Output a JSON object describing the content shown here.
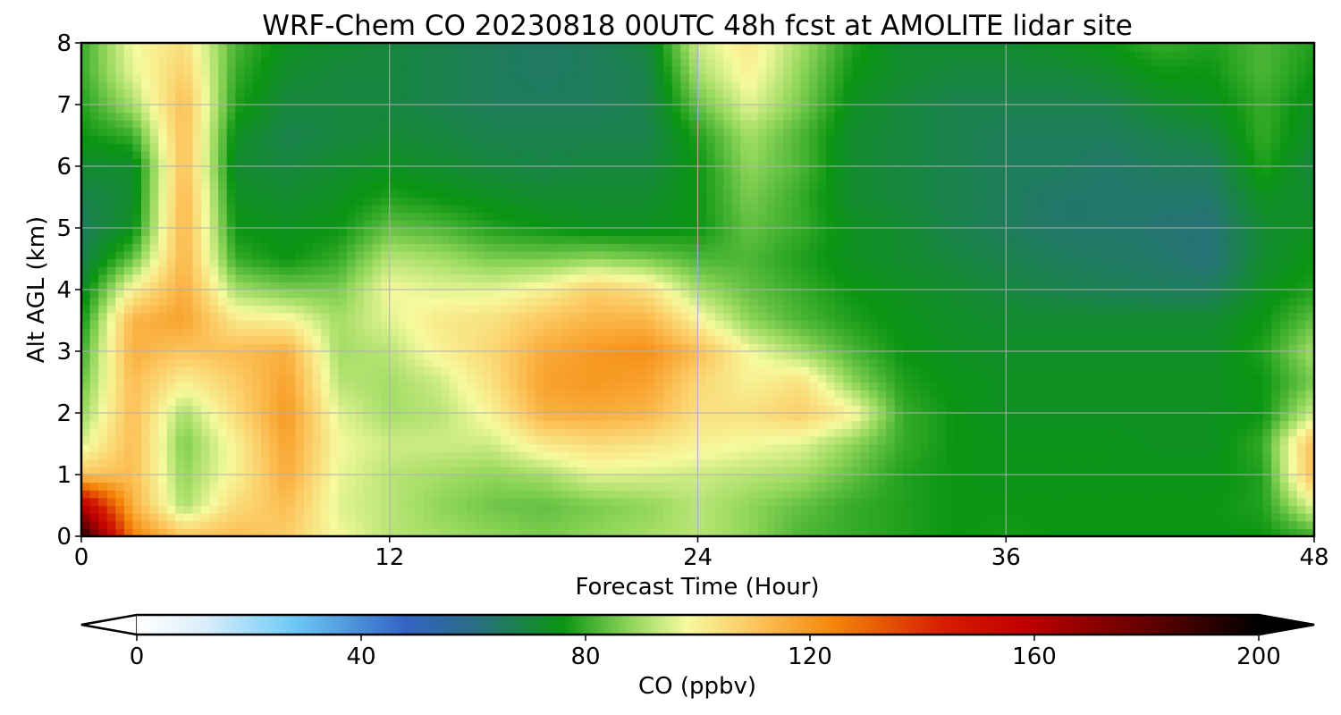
{
  "chart_data": {
    "type": "heatmap",
    "title": "WRF-Chem CO  20230818 00UTC 48h fcst at AMOLITE lidar site",
    "xlabel": "Forecast Time (Hour)",
    "ylabel": "Alt AGL (km)",
    "xlim": [
      0,
      48
    ],
    "ylim": [
      0,
      8
    ],
    "xticks": [
      "0",
      "12",
      "24",
      "36",
      "48"
    ],
    "yticks": [
      "0",
      "1",
      "2",
      "3",
      "4",
      "5",
      "6",
      "7",
      "8"
    ],
    "grid": true,
    "x": [
      0,
      2,
      4,
      6,
      8,
      10,
      12,
      14,
      16,
      18,
      20,
      22,
      24,
      26,
      28,
      30,
      32,
      34,
      36,
      38,
      40,
      42,
      44,
      46,
      48
    ],
    "y": [
      0,
      0.5,
      1,
      1.5,
      2,
      2.5,
      3,
      3.5,
      4,
      4.5,
      5,
      5.5,
      6,
      6.5,
      7,
      7.5,
      8
    ],
    "z": [
      [
        195,
        125,
        110,
        112,
        108,
        98,
        92,
        90,
        88,
        86,
        88,
        90,
        92,
        88,
        82,
        80,
        78,
        76,
        77,
        76,
        76,
        76,
        76,
        76,
        80
      ],
      [
        160,
        115,
        90,
        105,
        112,
        96,
        92,
        88,
        85,
        84,
        86,
        88,
        92,
        88,
        84,
        80,
        78,
        76,
        76,
        76,
        76,
        76,
        76,
        78,
        96
      ],
      [
        110,
        112,
        88,
        100,
        116,
        97,
        92,
        90,
        88,
        90,
        96,
        95,
        94,
        92,
        90,
        84,
        78,
        76,
        75,
        75,
        75,
        75,
        75,
        78,
        112
      ],
      [
        95,
        112,
        86,
        100,
        118,
        98,
        94,
        94,
        94,
        102,
        105,
        103,
        100,
        98,
        96,
        88,
        80,
        76,
        75,
        75,
        75,
        74,
        74,
        80,
        112
      ],
      [
        88,
        112,
        90,
        105,
        120,
        96,
        90,
        92,
        100,
        115,
        116,
        114,
        104,
        104,
        108,
        100,
        80,
        76,
        74,
        74,
        74,
        74,
        74,
        76,
        94
      ],
      [
        84,
        112,
        100,
        108,
        118,
        92,
        90,
        94,
        104,
        118,
        120,
        118,
        106,
        100,
        104,
        88,
        78,
        75,
        74,
        74,
        74,
        74,
        74,
        76,
        86
      ],
      [
        80,
        115,
        110,
        112,
        115,
        90,
        92,
        100,
        106,
        116,
        120,
        122,
        112,
        98,
        90,
        82,
        76,
        74,
        73,
        73,
        73,
        73,
        73,
        78,
        90
      ],
      [
        76,
        114,
        118,
        102,
        100,
        90,
        96,
        102,
        104,
        110,
        114,
        114,
        100,
        88,
        82,
        78,
        75,
        73,
        72,
        72,
        72,
        72,
        72,
        76,
        84
      ],
      [
        72,
        100,
        116,
        90,
        86,
        86,
        98,
        96,
        96,
        100,
        108,
        104,
        90,
        84,
        80,
        76,
        74,
        72,
        70,
        68,
        67,
        66,
        66,
        74,
        78
      ],
      [
        68,
        84,
        114,
        80,
        76,
        80,
        92,
        90,
        86,
        86,
        88,
        86,
        82,
        82,
        78,
        74,
        72,
        70,
        68,
        66,
        65,
        64,
        62,
        72,
        76
      ],
      [
        66,
        74,
        114,
        76,
        74,
        76,
        84,
        82,
        78,
        76,
        74,
        74,
        76,
        84,
        80,
        74,
        72,
        68,
        66,
        64,
        64,
        63,
        62,
        72,
        74
      ],
      [
        68,
        72,
        114,
        74,
        72,
        74,
        78,
        76,
        74,
        72,
        72,
        72,
        76,
        86,
        80,
        72,
        70,
        68,
        66,
        64,
        64,
        64,
        64,
        74,
        72
      ],
      [
        72,
        72,
        112,
        72,
        70,
        72,
        74,
        72,
        70,
        69,
        70,
        70,
        76,
        88,
        82,
        72,
        70,
        68,
        66,
        66,
        64,
        66,
        66,
        78,
        70
      ],
      [
        76,
        80,
        112,
        74,
        68,
        70,
        71,
        70,
        68,
        68,
        68,
        68,
        78,
        90,
        82,
        72,
        70,
        68,
        66,
        66,
        66,
        68,
        70,
        80,
        72
      ],
      [
        78,
        90,
        112,
        78,
        70,
        70,
        70,
        68,
        66,
        66,
        66,
        68,
        84,
        96,
        86,
        74,
        70,
        68,
        68,
        68,
        68,
        72,
        74,
        80,
        74
      ],
      [
        80,
        96,
        108,
        80,
        72,
        70,
        70,
        68,
        66,
        65,
        66,
        68,
        90,
        100,
        88,
        76,
        72,
        70,
        70,
        70,
        72,
        76,
        76,
        82,
        76
      ],
      [
        80,
        98,
        104,
        82,
        74,
        72,
        70,
        68,
        66,
        65,
        66,
        70,
        94,
        102,
        90,
        78,
        72,
        72,
        72,
        74,
        76,
        80,
        78,
        82,
        78
      ]
    ],
    "colorbar": {
      "label": "CO  (ppbv)",
      "min": 0,
      "max": 200,
      "ticks": [
        "0",
        "40",
        "80",
        "120",
        "160",
        "200"
      ],
      "extend": "both",
      "stops": [
        [
          0,
          "#ffffff"
        ],
        [
          12,
          "#dbeefb"
        ],
        [
          28,
          "#6ccaf6"
        ],
        [
          48,
          "#3263c4"
        ],
        [
          60,
          "#2a6d86"
        ],
        [
          76,
          "#0a9512"
        ],
        [
          88,
          "#90d65a"
        ],
        [
          98,
          "#f6fa9e"
        ],
        [
          110,
          "#fcc65e"
        ],
        [
          124,
          "#f58709"
        ],
        [
          144,
          "#d41d00"
        ],
        [
          158,
          "#c00000"
        ],
        [
          180,
          "#650000"
        ],
        [
          200,
          "#000000"
        ]
      ]
    }
  }
}
